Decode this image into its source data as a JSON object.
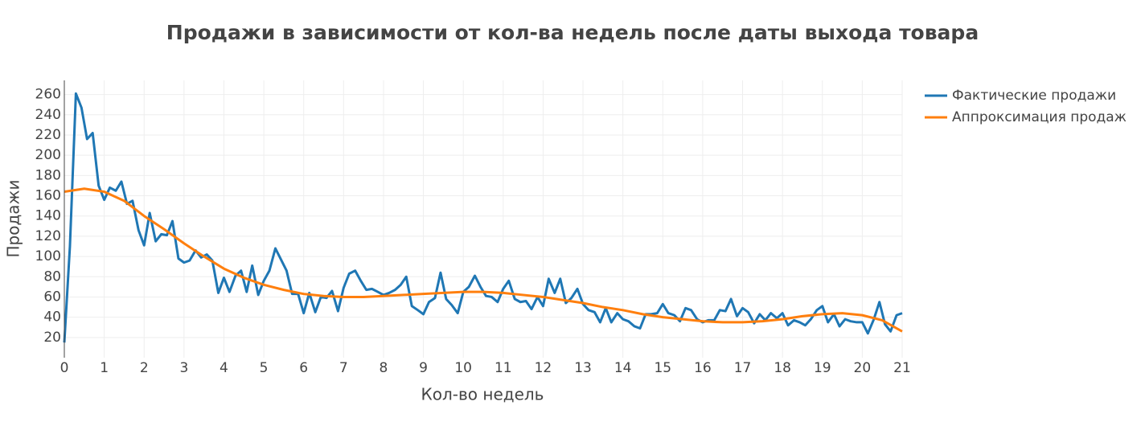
{
  "chart_data": {
    "type": "line",
    "title": "Продажи в зависимости от кол-ва недель после даты выхода товара",
    "x_label": "Кол-во недель",
    "y_label": "Продажи",
    "xlim": [
      0,
      21
    ],
    "xticks": [
      0,
      1,
      2,
      3,
      4,
      5,
      6,
      7,
      8,
      9,
      10,
      11,
      12,
      13,
      14,
      15,
      16,
      17,
      18,
      19,
      20,
      21
    ],
    "ylim": [
      0,
      274
    ],
    "yticks": [
      20,
      40,
      60,
      80,
      100,
      120,
      140,
      160,
      180,
      200,
      220,
      240,
      260
    ],
    "grid": true,
    "legend": "right",
    "series": [
      {
        "name": "Фактические продажи",
        "color": "#1f77b4",
        "x": [
          0,
          0.14,
          0.29,
          0.43,
          0.57,
          0.71,
          0.86,
          1,
          1.14,
          1.29,
          1.43,
          1.57,
          1.71,
          1.86,
          2,
          2.14,
          2.29,
          2.43,
          2.57,
          2.71,
          2.86,
          3,
          3.14,
          3.29,
          3.43,
          3.57,
          3.71,
          3.86,
          4,
          4.14,
          4.29,
          4.43,
          4.57,
          4.71,
          4.86,
          5,
          5.14,
          5.29,
          5.43,
          5.57,
          5.71,
          5.86,
          6,
          6.14,
          6.29,
          6.43,
          6.57,
          6.71,
          6.86,
          7,
          7.14,
          7.29,
          7.43,
          7.57,
          7.71,
          7.86,
          8,
          8.14,
          8.29,
          8.43,
          8.57,
          8.71,
          8.86,
          9,
          9.14,
          9.29,
          9.43,
          9.57,
          9.71,
          9.86,
          10,
          10.14,
          10.29,
          10.43,
          10.57,
          10.71,
          10.86,
          11,
          11.14,
          11.29,
          11.43,
          11.57,
          11.71,
          11.86,
          12,
          12.14,
          12.29,
          12.43,
          12.57,
          12.71,
          12.86,
          13,
          13.14,
          13.29,
          13.43,
          13.57,
          13.71,
          13.86,
          14,
          14.14,
          14.29,
          14.43,
          14.57,
          14.71,
          14.86,
          15,
          15.14,
          15.29,
          15.43,
          15.57,
          15.71,
          15.86,
          16,
          16.14,
          16.29,
          16.43,
          16.57,
          16.71,
          16.86,
          17,
          17.14,
          17.29,
          17.43,
          17.57,
          17.71,
          17.86,
          18,
          18.14,
          18.29,
          18.43,
          18.57,
          18.71,
          18.86,
          19,
          19.14,
          19.29,
          19.43,
          19.57,
          19.71,
          19.86,
          20,
          20.14,
          20.29,
          20.43,
          20.57,
          20.71,
          20.86,
          21
        ],
        "values": [
          15,
          110,
          261,
          247,
          216,
          222,
          170,
          156,
          168,
          165,
          174,
          152,
          155,
          126,
          111,
          143,
          115,
          122,
          121,
          135,
          98,
          94,
          96,
          106,
          99,
          102,
          96,
          64,
          79,
          65,
          81,
          86,
          65,
          91,
          62,
          76,
          86,
          108,
          97,
          86,
          63,
          63,
          44,
          64,
          45,
          60,
          59,
          66,
          46,
          69,
          83,
          86,
          76,
          67,
          68,
          65,
          62,
          64,
          67,
          72,
          80,
          51,
          47,
          43,
          55,
          59,
          84,
          58,
          52,
          44,
          65,
          70,
          81,
          70,
          61,
          60,
          55,
          68,
          76,
          58,
          55,
          56,
          48,
          60,
          51,
          78,
          64,
          78,
          54,
          59,
          68,
          53,
          47,
          45,
          35,
          49,
          35,
          44,
          38,
          36,
          31,
          29,
          43,
          43,
          44,
          53,
          44,
          42,
          36,
          49,
          47,
          38,
          35,
          37,
          37,
          47,
          46,
          58,
          41,
          49,
          45,
          34,
          43,
          37,
          44,
          39,
          44,
          32,
          37,
          35,
          32,
          38,
          47,
          51,
          35,
          43,
          31,
          38,
          36,
          35,
          35,
          24,
          38,
          55,
          33,
          26,
          42,
          44
        ]
      },
      {
        "name": "Аппроксимация продаж",
        "color": "#ff7f0e",
        "x": [
          0,
          0.5,
          1,
          1.5,
          2,
          2.5,
          3,
          3.5,
          4,
          4.5,
          5,
          5.5,
          6,
          6.5,
          7,
          7.5,
          8,
          8.5,
          9,
          9.5,
          10,
          10.5,
          11,
          11.5,
          12,
          12.5,
          13,
          13.5,
          14,
          14.5,
          15,
          15.5,
          16,
          16.5,
          17,
          17.5,
          18,
          18.5,
          19,
          19.5,
          20,
          20.5,
          21
        ],
        "values": [
          164,
          167,
          164,
          155,
          140,
          127,
          113,
          100,
          88,
          79,
          72,
          67,
          63,
          61,
          60,
          60,
          61,
          62,
          63,
          64,
          65,
          65,
          64,
          62,
          60,
          57,
          54,
          50,
          47,
          43,
          40,
          38,
          36,
          35,
          35,
          36,
          38,
          41,
          43,
          44,
          42,
          37,
          26
        ]
      }
    ]
  }
}
